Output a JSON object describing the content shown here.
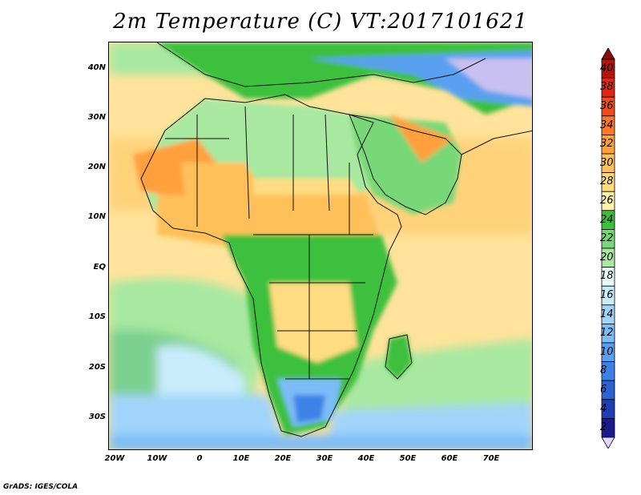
{
  "title": "2m Temperature (C) VT:2017101621",
  "credit": "GrADS: IGES/COLA",
  "lat_ticks": [
    "40N",
    "30N",
    "20N",
    "10N",
    "EQ",
    "10S",
    "20S",
    "30S"
  ],
  "lon_ticks": [
    "20W",
    "10W",
    "0",
    "10E",
    "20E",
    "30E",
    "40E",
    "50E",
    "60E",
    "70E"
  ],
  "colorbar": {
    "labels": [
      "2",
      "4",
      "6",
      "8",
      "10",
      "12",
      "14",
      "16",
      "18",
      "20",
      "22",
      "24",
      "26",
      "28",
      "30",
      "32",
      "34",
      "36",
      "38",
      "40"
    ],
    "colors": [
      "#1a1a8c",
      "#1e3fb4",
      "#2a64d2",
      "#3c82e6",
      "#5aa0f0",
      "#7cbcf8",
      "#a0d4fa",
      "#c8ecfc",
      "#e6f8f8",
      "#a8e8a0",
      "#78d878",
      "#3cc03c",
      "#fff4a8",
      "#ffdc82",
      "#ffc05a",
      "#ffa03c",
      "#ff7828",
      "#f04b1e",
      "#dc2814",
      "#b4140a",
      "#8c0a0a"
    ],
    "overflow_low_color": "#e0d8ff"
  }
}
